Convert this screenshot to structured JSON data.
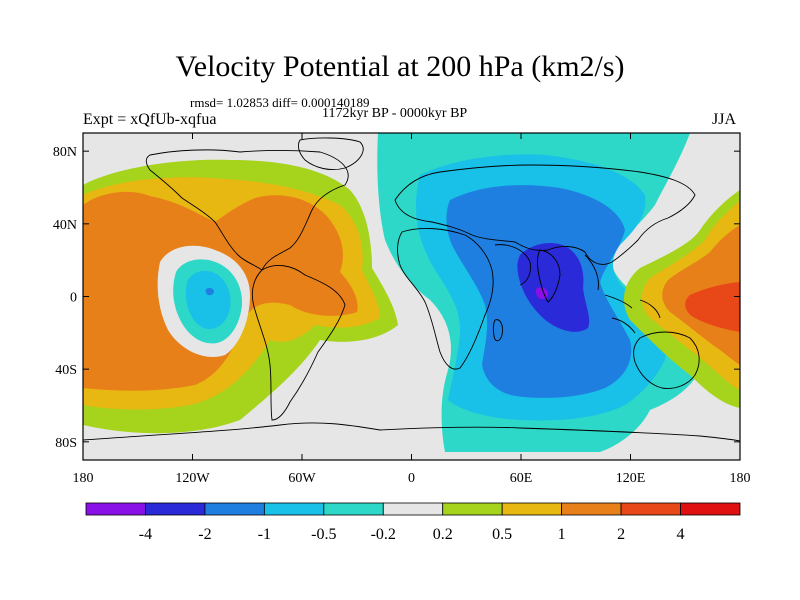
{
  "header": {
    "title": "Velocity Potential at 200 hPa (km2/s)",
    "stats": "rmsd= 1.02853 diff= 0.000140189",
    "period": "1172kyr BP - 0000kyr BP",
    "experiment": "Expt = xQfUb-xqfua",
    "season": "JJA"
  },
  "axes": {
    "lat_labels": [
      "80N",
      "40N",
      "0",
      "40S",
      "80S"
    ],
    "lat_values": [
      80,
      40,
      0,
      -40,
      -80
    ],
    "lon_labels": [
      "180",
      "120W",
      "60W",
      "0",
      "60E",
      "120E",
      "180"
    ],
    "lon_values": [
      -180,
      -120,
      -60,
      0,
      60,
      120,
      180
    ],
    "lon_range": [
      -180,
      180
    ],
    "lat_range": [
      -90,
      90
    ]
  },
  "colorbar": {
    "labels": [
      "-4",
      "-2",
      "-1",
      "-0.5",
      "-0.2",
      "0.2",
      "0.5",
      "1",
      "2",
      "4"
    ],
    "colors": [
      "#8a10e8",
      "#2a2ad8",
      "#1f7fe0",
      "#19c0e8",
      "#2ed8c8",
      "#e6e6e6",
      "#a6d31c",
      "#e8b812",
      "#e8801a",
      "#e84818",
      "#e01010"
    ]
  },
  "field": {
    "positive_colors": [
      "#a6d31c",
      "#e8b812",
      "#e8801a",
      "#e84818"
    ],
    "negative_colors": [
      "#2ed8c8",
      "#19c0e8",
      "#1f7fe0",
      "#2a2ad8",
      "#8a10e8"
    ],
    "neutral_color": "#e6e6e6"
  }
}
